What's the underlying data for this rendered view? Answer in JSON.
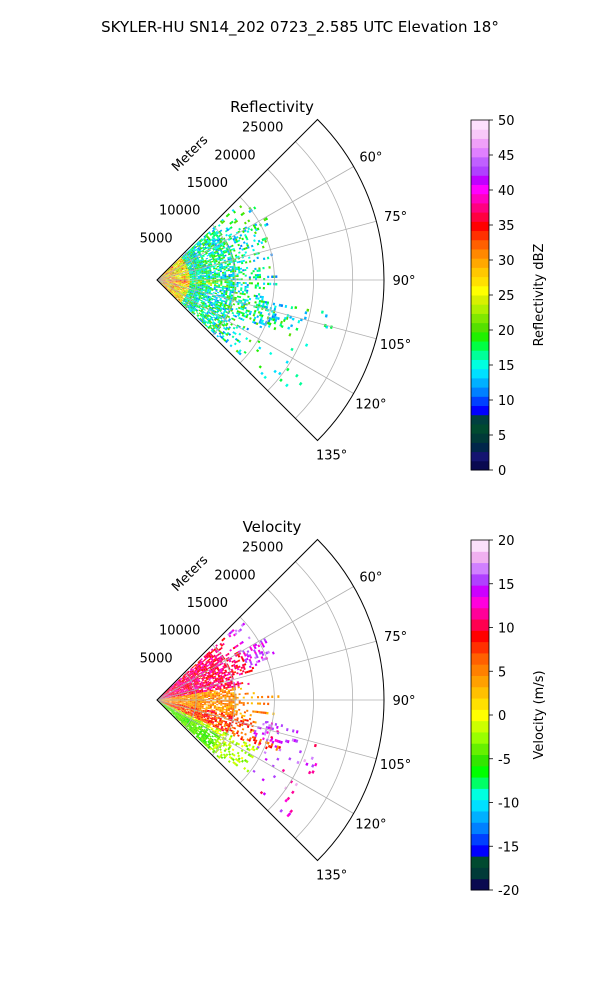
{
  "figure": {
    "suptitle": "SKYLER-HU  SN14_202  0723_2.585 UTC Elevation 18°"
  },
  "chart_data": [
    {
      "type": "heatmap",
      "title": "Reflectivity",
      "range_label": "Meters",
      "range_ticks": [
        5000,
        10000,
        15000,
        20000,
        25000
      ],
      "range_max": 29000,
      "azimuth_ticks": [
        "60°",
        "75°",
        "90°",
        "105°",
        "120°",
        "135°"
      ],
      "azimuth_range": [
        45,
        135
      ],
      "colorbar": {
        "label": "Reflectivity dBZ",
        "min": 0,
        "max": 50,
        "ticks": [
          "0",
          "5",
          "10",
          "15",
          "20",
          "25",
          "30",
          "35",
          "40",
          "45",
          "50"
        ],
        "colors": [
          "#0a0a50",
          "#141470",
          "#00264a",
          "#003a38",
          "#004a30",
          "#004040",
          "#0000ff",
          "#0040ff",
          "#0080ff",
          "#00b0ff",
          "#00e0ff",
          "#00ffe0",
          "#00ff99",
          "#00ff44",
          "#20f000",
          "#55e000",
          "#80e800",
          "#b0f000",
          "#d8f000",
          "#ffff00",
          "#ffe000",
          "#ffc800",
          "#ffa800",
          "#ff8800",
          "#ff6000",
          "#ff3000",
          "#ff0000",
          "#ff0040",
          "#ff0080",
          "#ff00c0",
          "#ff00ff",
          "#c000ff",
          "#b040ff",
          "#c060ff",
          "#e080ff",
          "#f0a0f8",
          "#f8c8f8",
          "#fce0fc"
        ]
      },
      "data_summary": "Echoes concentrated at ranges under about 15000 m, mostly 12-25 dBZ, with a few values near 35-40 dBZ close to the radar."
    },
    {
      "type": "heatmap",
      "title": "Velocity",
      "range_label": "Meters",
      "range_ticks": [
        5000,
        10000,
        15000,
        20000,
        25000
      ],
      "range_max": 29000,
      "azimuth_ticks": [
        "60°",
        "75°",
        "90°",
        "105°",
        "120°",
        "135°"
      ],
      "azimuth_range": [
        45,
        135
      ],
      "colorbar": {
        "label": "Velocity (m/s)",
        "min": -20,
        "max": 20,
        "ticks": [
          "-20",
          "-15",
          "-10",
          "-5",
          "0",
          "5",
          "10",
          "15",
          "20"
        ],
        "colors": [
          "#0a0a50",
          "#003a38",
          "#004a30",
          "#0000ff",
          "#0040ff",
          "#0080ff",
          "#00b0ff",
          "#00e0ff",
          "#00ffe0",
          "#00ff66",
          "#00ff00",
          "#33e600",
          "#66f000",
          "#99ff00",
          "#ccff00",
          "#ffff00",
          "#ffe000",
          "#ffc000",
          "#ffa000",
          "#ff8000",
          "#ff6000",
          "#ff3000",
          "#ff0000",
          "#ff0050",
          "#ff0099",
          "#ff00dd",
          "#cc00ff",
          "#b040ff",
          "#d080ff",
          "#f0b0f0",
          "#fce0fc"
        ]
      },
      "data_summary": "Mostly positive (outbound) velocities of 0-12 m/s near 75-105°, negative values around -5 m/s along the southern edge (around 120-135°), and peaks up to about 15 m/s near the far edges."
    }
  ]
}
